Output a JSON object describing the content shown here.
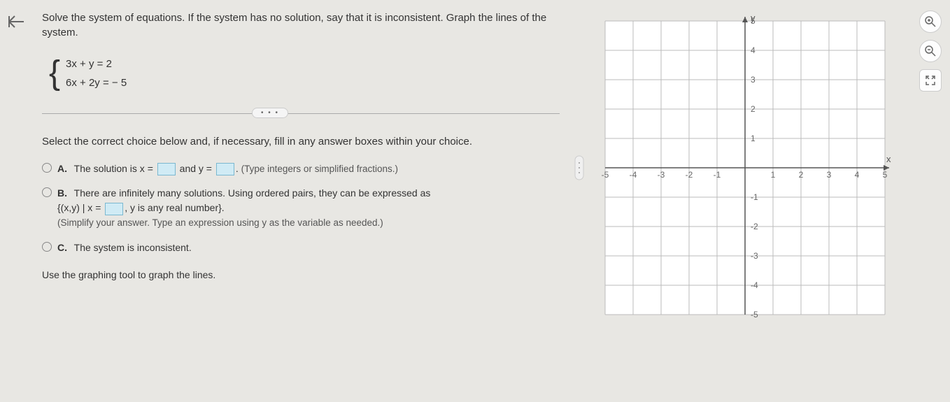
{
  "nav": {
    "back_icon": "⟵"
  },
  "question": {
    "prompt": "Solve the system of equations. If the system has no solution, say that it is inconsistent. Graph the lines of the system.",
    "eq1": "3x + y  = 2",
    "eq2": "6x + 2y = − 5",
    "dots": "• • •",
    "instruction": "Select the correct choice below and, if necessary, fill in any answer boxes within your choice."
  },
  "choices": {
    "a": {
      "label": "A.",
      "pre": "The solution is x = ",
      "mid": " and y = ",
      "post": ". ",
      "hint": "(Type integers or simplified fractions.)"
    },
    "b": {
      "label": "B.",
      "line1": "There are infinitely many solutions. Using ordered pairs, they can be expressed as",
      "set_pre": "{(x,y) | x = ",
      "set_post": ", y is any real number}.",
      "hint": "(Simplify your answer. Type an expression using y as the variable as needed.)"
    },
    "c": {
      "label": "C.",
      "text": "The system is inconsistent."
    }
  },
  "final": "Use the graphing tool to graph the lines.",
  "graph": {
    "xlabel": "x",
    "ylabel": "y",
    "xmin": -5,
    "xmax": 5,
    "ymin": -5,
    "ymax": 5,
    "xticks": [
      -5,
      -4,
      -3,
      -2,
      -1,
      1,
      2,
      3,
      4,
      5
    ],
    "yticks": [
      -5,
      -4,
      -3,
      -2,
      -1,
      1,
      2,
      3,
      4,
      5
    ],
    "grid_color": "#bbbbbb",
    "axis_color": "#555555",
    "background_color": "#ffffff"
  },
  "tools": {
    "zoom_in": "⊕",
    "zoom_out": "⊖",
    "reset": "⤢",
    "expand": "⇱"
  }
}
